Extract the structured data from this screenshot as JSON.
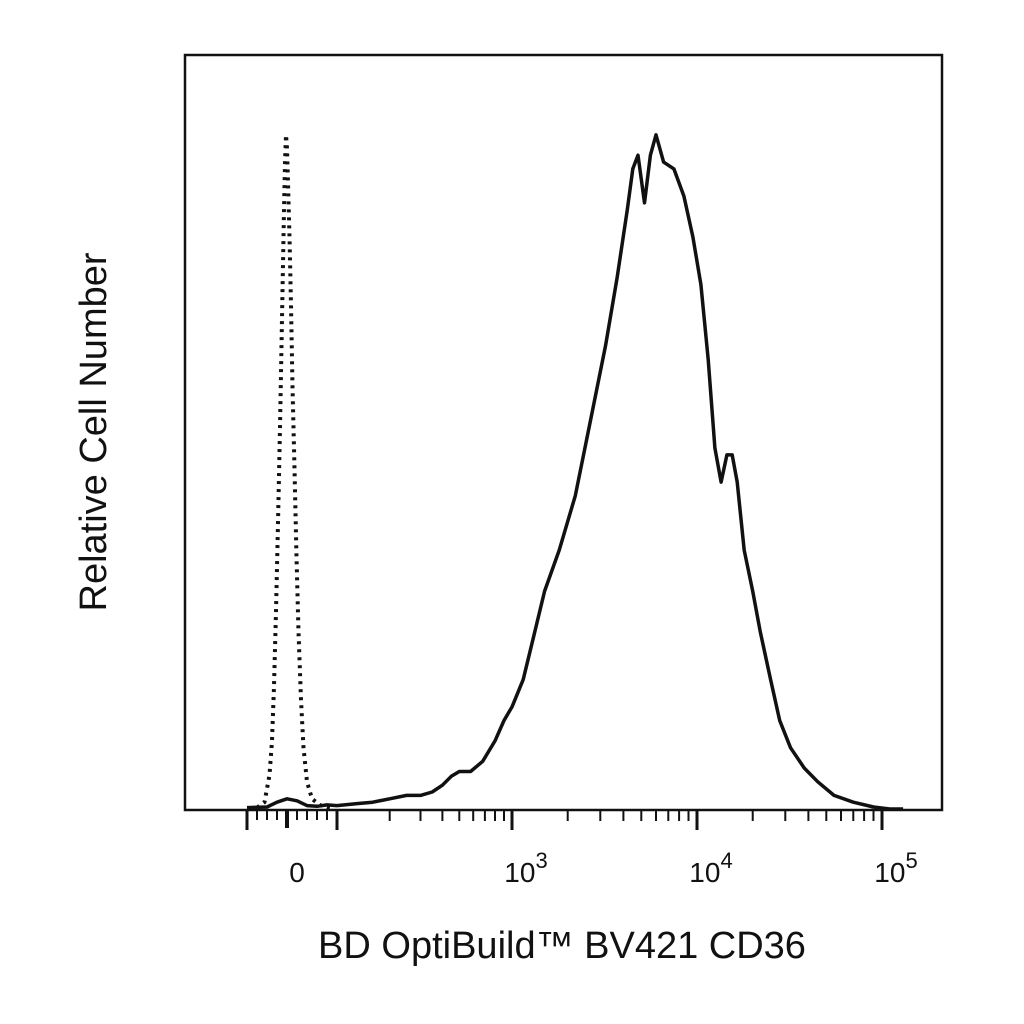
{
  "chart_data": {
    "type": "line",
    "title": "",
    "xlabel": "BD OptiBuild™ BV421 CD36",
    "ylabel": "Relative Cell Number",
    "x_scale": "biexponential",
    "xlim": [
      -100,
      200000
    ],
    "ylim": [
      0,
      1.0
    ],
    "grid": false,
    "legend": "none",
    "x_ticks": [
      {
        "value": 0,
        "base": "0",
        "exp": ""
      },
      {
        "value": 1000,
        "base": "10",
        "exp": "3"
      },
      {
        "value": 10000,
        "base": "10",
        "exp": "4"
      },
      {
        "value": 100000,
        "base": "10",
        "exp": "5"
      }
    ],
    "series": [
      {
        "style": "dotted",
        "color": "#111111",
        "x": [
          -60,
          -45,
          -35,
          -30,
          -26,
          -22,
          -18,
          -14,
          -11,
          -8,
          -6,
          -4,
          -2,
          0,
          2,
          5,
          8,
          11,
          15,
          19,
          23,
          28,
          33,
          40,
          50,
          65,
          80,
          95
        ],
        "y": [
          0.002,
          0.01,
          0.05,
          0.1,
          0.18,
          0.29,
          0.42,
          0.56,
          0.68,
          0.8,
          0.88,
          0.95,
          0.99,
          0.97,
          0.92,
          0.84,
          0.74,
          0.62,
          0.5,
          0.37,
          0.26,
          0.16,
          0.09,
          0.04,
          0.015,
          0.006,
          0.002,
          0.0
        ]
      },
      {
        "style": "solid",
        "color": "#111111",
        "x": [
          -80,
          -40,
          -20,
          0,
          20,
          40,
          60,
          80,
          100,
          130,
          160,
          200,
          250,
          300,
          350,
          400,
          450,
          500,
          580,
          680,
          800,
          900,
          1000,
          1150,
          1300,
          1500,
          1800,
          2200,
          2700,
          3200,
          3700,
          4200,
          4500,
          4800,
          5200,
          5600,
          6000,
          6600,
          7500,
          8500,
          9500,
          10500,
          11500,
          12500,
          13500,
          14500,
          15500,
          16500,
          18000,
          20000,
          22000,
          25000,
          28000,
          32000,
          38000,
          45000,
          55000,
          70000,
          90000,
          110000,
          130000
        ],
        "y": [
          0.002,
          0.003,
          0.01,
          0.015,
          0.012,
          0.005,
          0.004,
          0.006,
          0.005,
          0.008,
          0.01,
          0.015,
          0.02,
          0.02,
          0.025,
          0.035,
          0.048,
          0.055,
          0.055,
          0.07,
          0.1,
          0.13,
          0.15,
          0.19,
          0.25,
          0.32,
          0.38,
          0.46,
          0.58,
          0.68,
          0.78,
          0.88,
          0.94,
          0.96,
          0.89,
          0.96,
          0.99,
          0.95,
          0.94,
          0.9,
          0.84,
          0.77,
          0.66,
          0.53,
          0.48,
          0.52,
          0.52,
          0.48,
          0.38,
          0.32,
          0.26,
          0.19,
          0.13,
          0.09,
          0.06,
          0.04,
          0.02,
          0.01,
          0.003,
          0.0,
          0.0
        ]
      }
    ]
  }
}
